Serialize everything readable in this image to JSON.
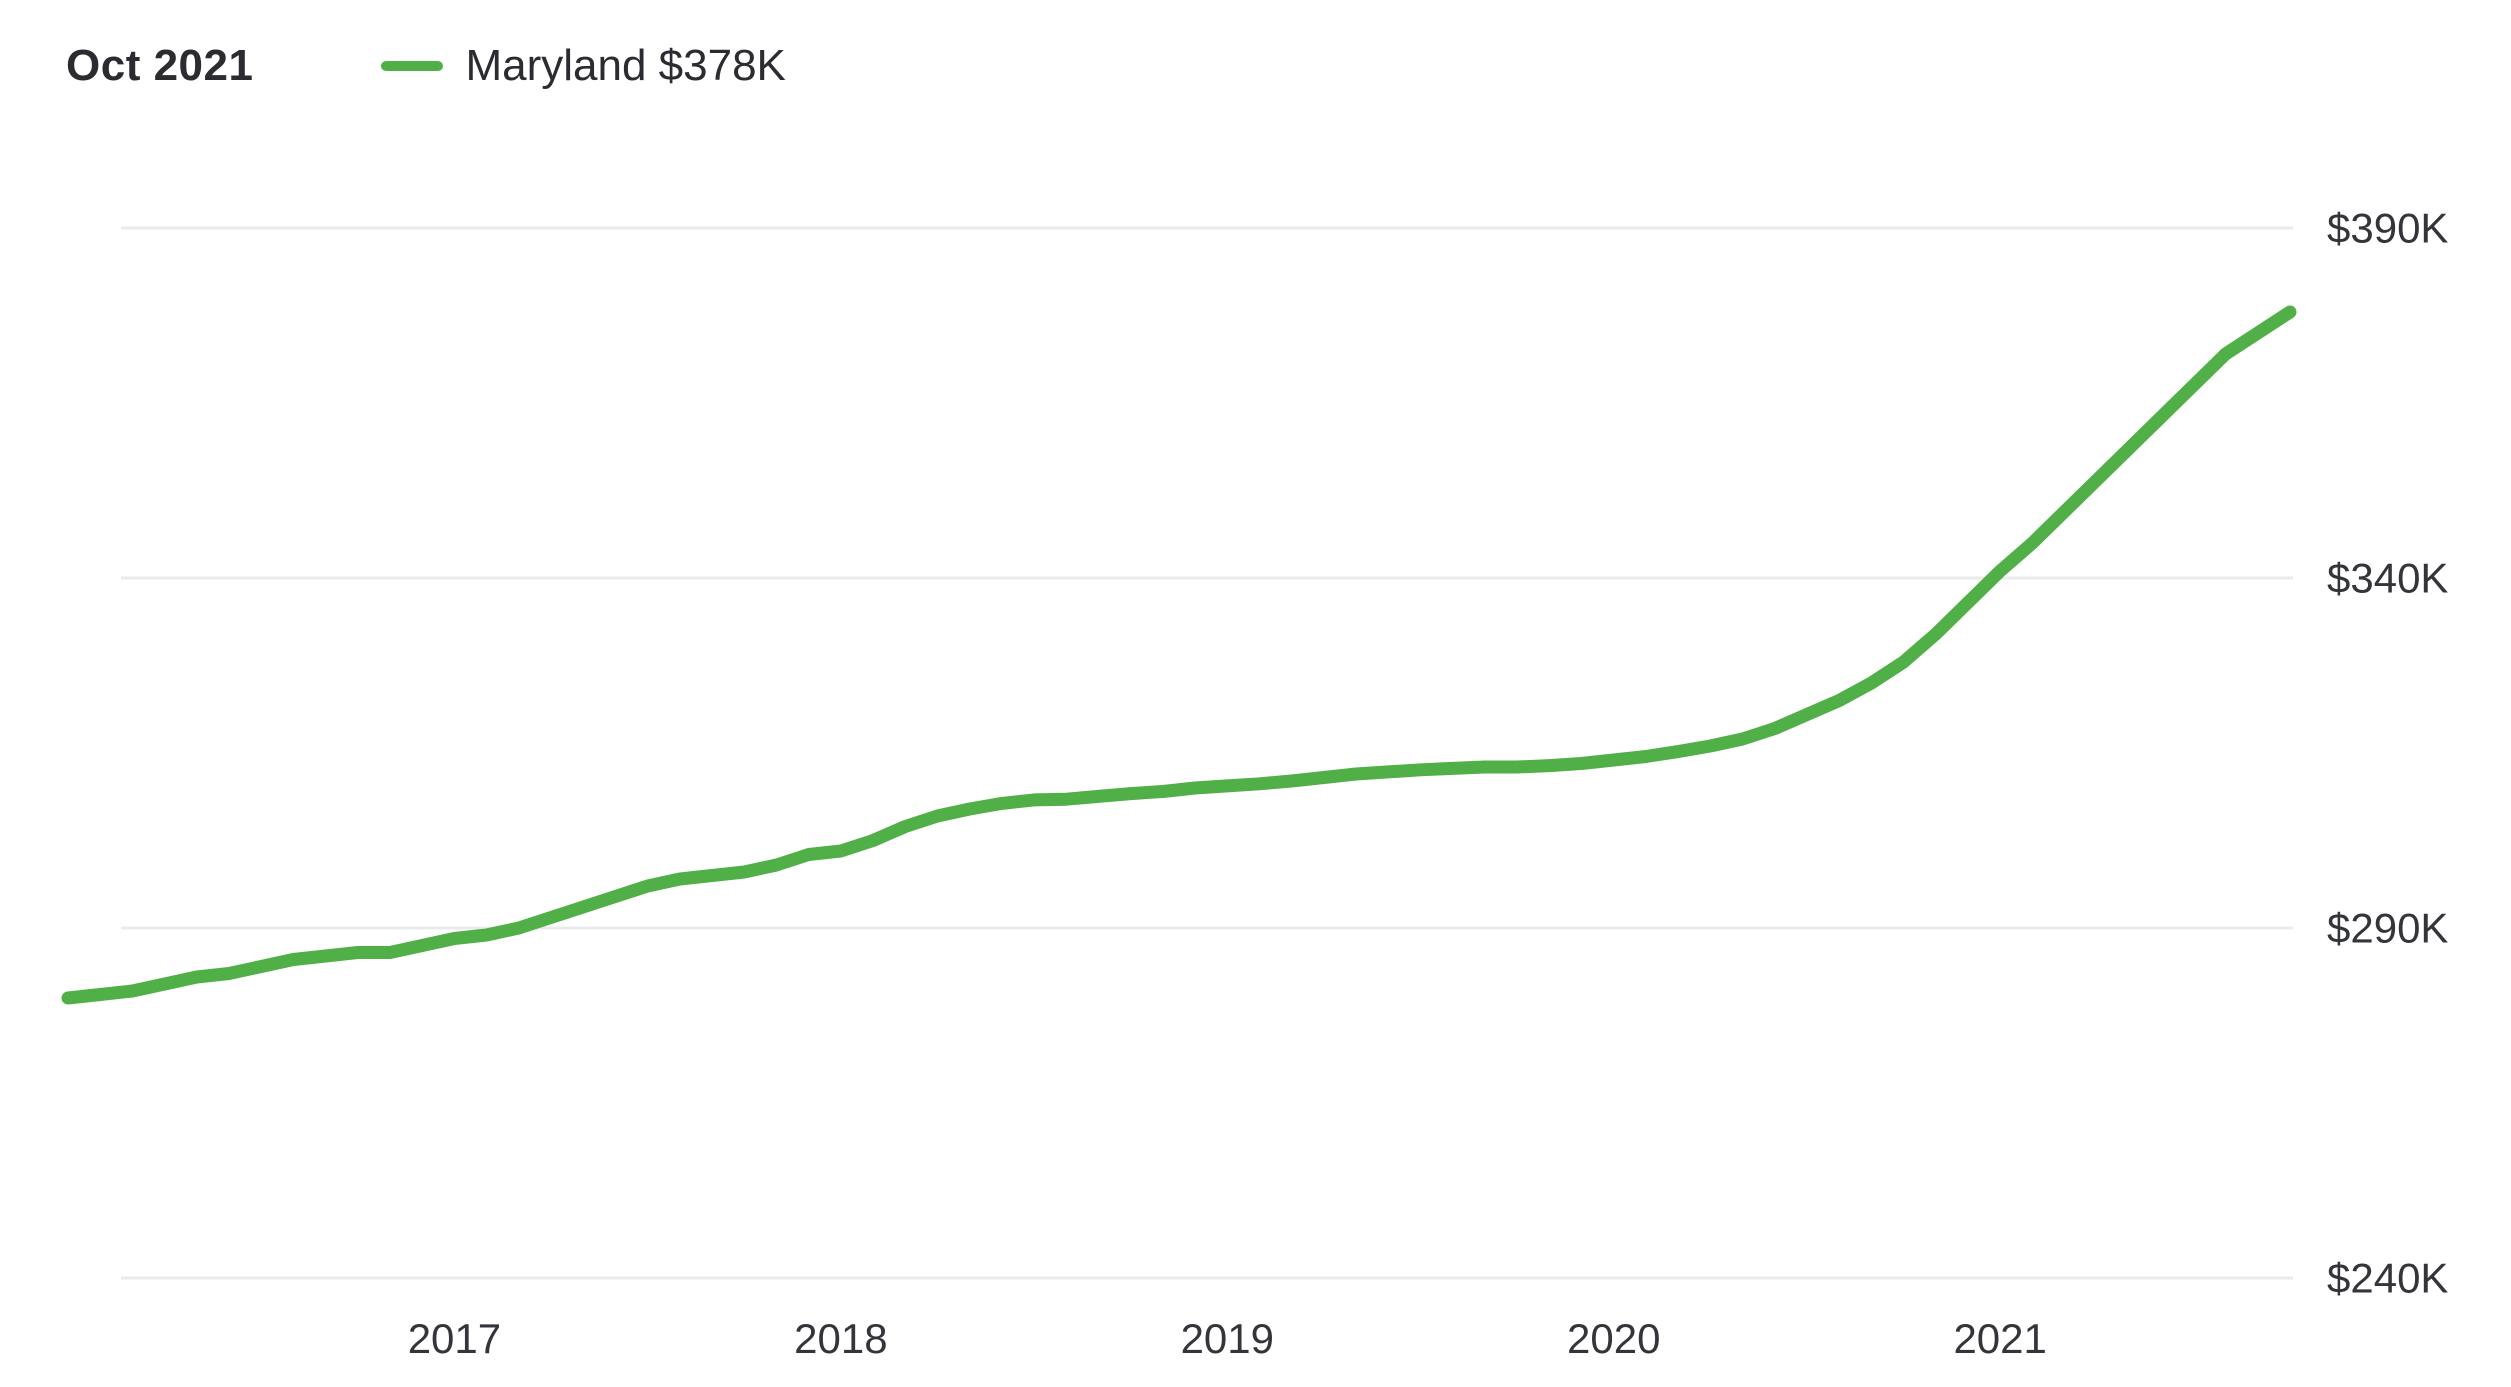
{
  "header": {
    "date_label": "Oct 2021",
    "legend_label": "Maryland $378K"
  },
  "colors": {
    "line": "#50AF46",
    "grid": "#ebebee",
    "tick_text": "#33353a",
    "title_text": "#2b2b31"
  },
  "chart_data": {
    "type": "line",
    "title": "Oct 2021",
    "legend": [
      {
        "label": "Maryland $378K",
        "position": "top-left"
      }
    ],
    "xlabel": "",
    "ylabel": "",
    "frequency": "monthly",
    "x_end_label": "Oct 2021",
    "x_tick_labels": [
      "2017",
      "2018",
      "2019",
      "2020",
      "2021"
    ],
    "x_tick_indices": [
      12,
      24,
      36,
      48,
      60
    ],
    "y_ticks": [
      240,
      290,
      340,
      390
    ],
    "y_tick_labels": [
      "$240K",
      "$290K",
      "$340K",
      "$390K"
    ],
    "ylim": [
      240,
      390
    ],
    "grid": "horizontal-only",
    "y_axis_side": "right",
    "series": [
      {
        "name": "Maryland",
        "current_value_label": "$378K",
        "unit": "USD thousands",
        "values": [
          280,
          280.5,
          281,
          282,
          283,
          283.5,
          284.5,
          285.5,
          286,
          286.5,
          286.5,
          287.5,
          288.5,
          289,
          290,
          291.5,
          293,
          294.5,
          296,
          297,
          297.5,
          298,
          299,
          300.5,
          301,
          302.5,
          304.5,
          306,
          307,
          307.8,
          308.3,
          308.4,
          308.8,
          309.2,
          309.5,
          310,
          310.3,
          310.6,
          311,
          311.5,
          312,
          312.3,
          312.6,
          312.8,
          313,
          313,
          313.2,
          313.5,
          314,
          314.5,
          315.2,
          316,
          317,
          318.5,
          320.5,
          322.5,
          325,
          328,
          332,
          336.5,
          341,
          345,
          349.5,
          354,
          358.5,
          363,
          367.5,
          372,
          375,
          378
        ]
      }
    ]
  }
}
